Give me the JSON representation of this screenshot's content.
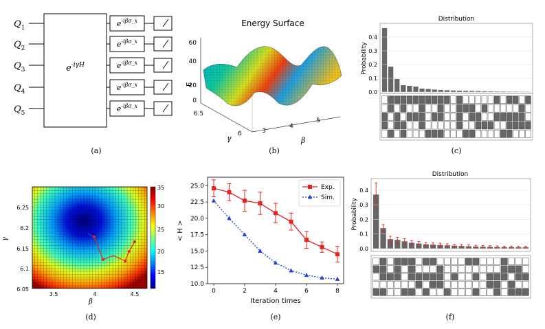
{
  "panel_labels": [
    "(a)",
    "(b)",
    "(c)",
    "(d)",
    "(e)",
    "(f)"
  ],
  "circuit": {
    "qubits": [
      "Q_1",
      "Q_2",
      "Q_3",
      "Q_4",
      "Q_5"
    ],
    "unitary_label": "e^{-iγH}",
    "rotation_label": "e^{-iβσ_x}"
  },
  "surface": {
    "title": "Energy Surface",
    "zlabel": "E",
    "xlabel": "β",
    "ylabel": "γ",
    "zticks": [
      "0",
      "20",
      "40",
      "60"
    ],
    "xticks": [
      "3",
      "4",
      "5"
    ],
    "yticks": [
      "6",
      "6.5"
    ]
  },
  "heatmap": {
    "xlabel": "β",
    "ylabel": "γ",
    "xticks": [
      "3.5",
      "4",
      "4.5"
    ],
    "yticks": [
      "6.25",
      "6.2",
      "6.15",
      "6.1",
      "6.05"
    ],
    "colorbar_ticks": [
      "35",
      "30",
      "25",
      "20",
      "15"
    ],
    "accent": "#e8231f"
  },
  "chart_data": [
    {
      "type": "bar",
      "id": "c",
      "title": "Distribution",
      "ylabel": "Probability",
      "yticks": [
        "0.4",
        "0.3",
        "0.2",
        "0.1",
        "0.0"
      ],
      "ylim": [
        0,
        0.5
      ],
      "values": [
        0.465,
        0.185,
        0.095,
        0.05,
        0.045,
        0.04,
        0.025,
        0.022,
        0.018,
        0.015,
        0.013,
        0.011,
        0.01,
        0.009,
        0.008,
        0.007,
        0.006,
        0.005,
        0.004,
        0.004,
        0.003,
        0.003,
        0.002,
        0.002
      ],
      "color": "#666666"
    },
    {
      "type": "line",
      "id": "e",
      "xlabel": "Iteration times",
      "ylabel": "< H >",
      "xticks": [
        "0",
        "2",
        "4",
        "6",
        "8"
      ],
      "yticks": [
        "25.0",
        "22.5",
        "20.0",
        "17.5",
        "15.0",
        "12.5",
        "10.0"
      ],
      "xlim": [
        -0.4,
        8.4
      ],
      "ylim": [
        10,
        26.3
      ],
      "series": [
        {
          "name": "Exp.",
          "color": "#e8231f",
          "x": [
            0,
            1,
            2,
            3,
            4,
            5,
            6,
            7,
            8
          ],
          "values": [
            24.6,
            24.0,
            22.7,
            22.3,
            20.8,
            19.5,
            16.7,
            15.6,
            14.5
          ],
          "err": [
            1.3,
            1.3,
            1.6,
            1.7,
            1.5,
            1.3,
            1.3,
            0.8,
            1.2
          ]
        },
        {
          "name": "Sim.",
          "color": "#1f3fe0",
          "x": [
            0,
            1,
            2,
            3,
            4,
            5,
            6,
            7,
            8
          ],
          "values": [
            22.7,
            20.0,
            17.5,
            15.0,
            13.2,
            12.0,
            11.3,
            10.9,
            10.7
          ]
        }
      ]
    },
    {
      "type": "bar",
      "id": "f",
      "title": "Distribution",
      "ylabel": "Probability",
      "yticks": [
        "0.4",
        "0.3",
        "0.2",
        "0.1",
        "0.0"
      ],
      "ylim": [
        0,
        0.47
      ],
      "values": [
        0.37,
        0.14,
        0.065,
        0.06,
        0.05,
        0.04,
        0.035,
        0.03,
        0.027,
        0.025,
        0.022,
        0.02,
        0.018,
        0.016,
        0.014,
        0.013,
        0.012,
        0.011,
        0.01,
        0.01,
        0.009,
        0.009
      ],
      "err": [
        0.08,
        0.025,
        0.02,
        0.018,
        0.018,
        0.015,
        0.014,
        0.013,
        0.012,
        0.012,
        0.011,
        0.01,
        0.01,
        0.01,
        0.009,
        0.008,
        0.008,
        0.008,
        0.007,
        0.007,
        0.007,
        0.007
      ],
      "color": "#666666"
    }
  ]
}
